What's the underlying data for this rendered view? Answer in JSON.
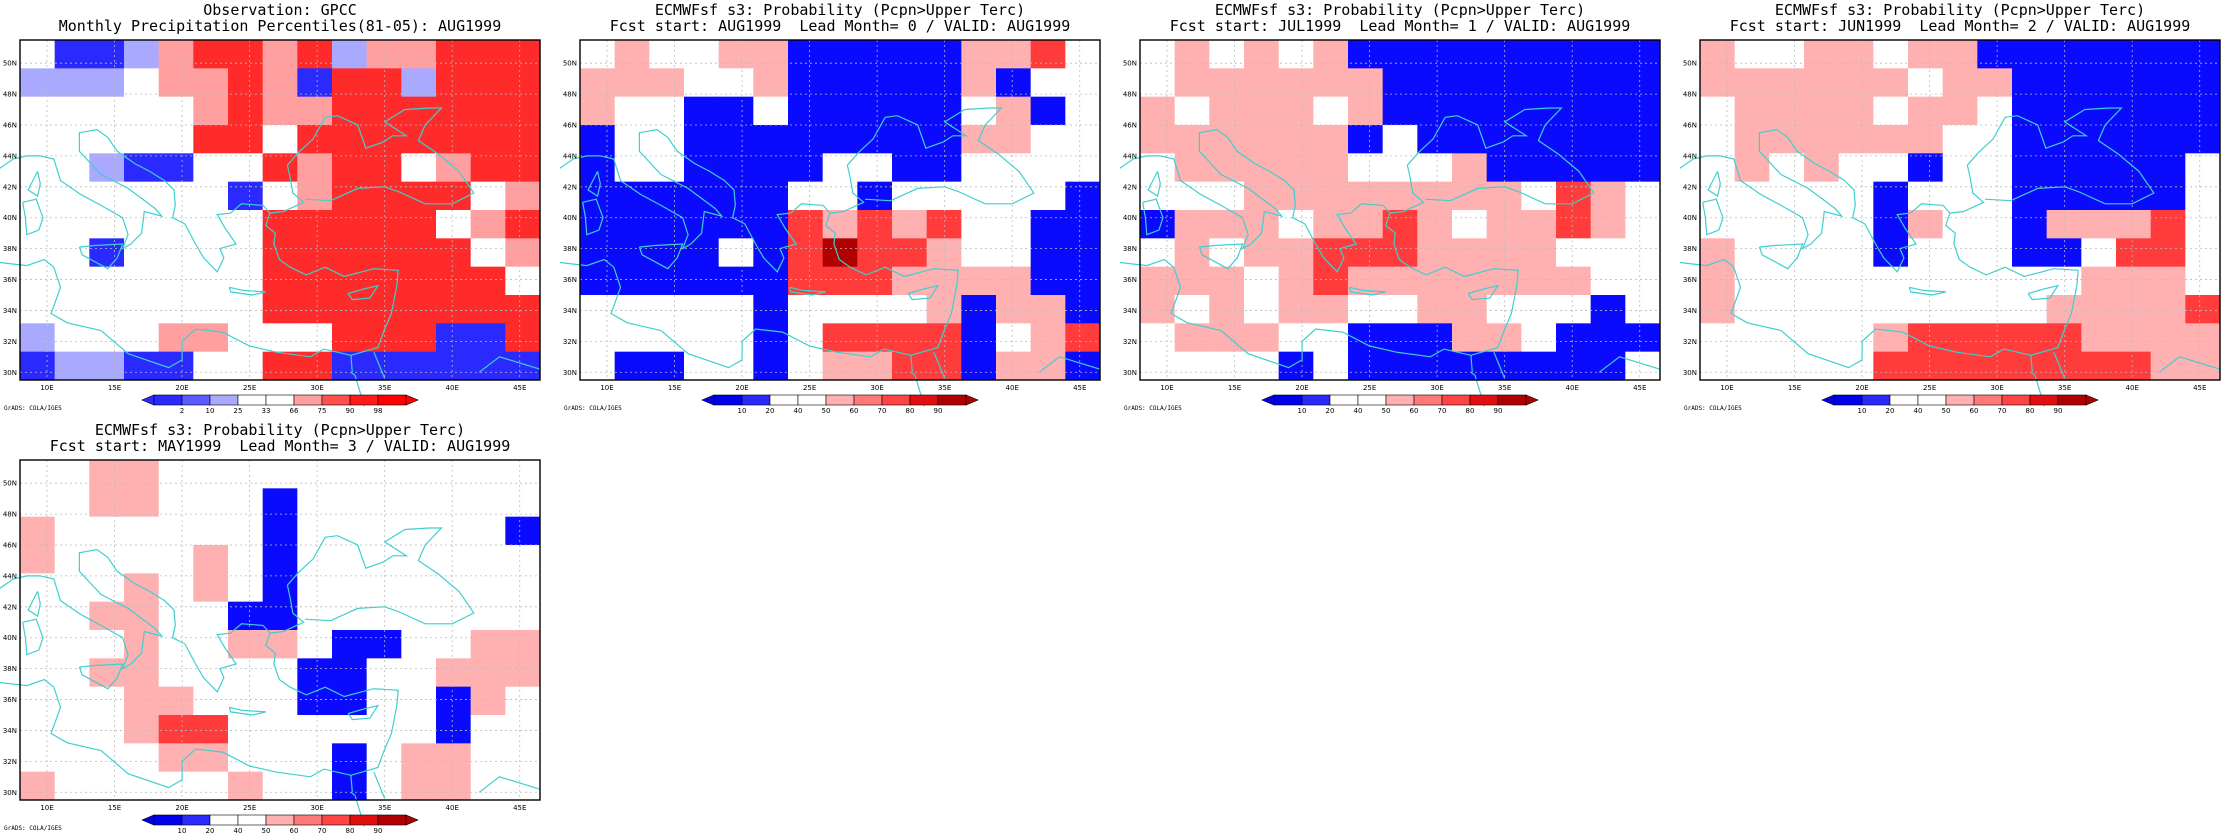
{
  "page": {
    "background": "#ffffff"
  },
  "colors": {
    "obs": {
      "2": "#2a2aff",
      "10": "#5a5aff",
      "25": "#a9a9ff",
      "33": "#ffffff",
      "66": "#ffffff",
      "75": "#ff9f9f",
      "90": "#ff5050",
      "98": "#ff1a1a",
      "above": "#ff0000"
    },
    "prob": {
      "below10": "#0000ee",
      "10": "#2a2aff",
      "20": "#ffffff",
      "40": "#ffffff",
      "50": "#ffb0b0",
      "60": "#ff7a7a",
      "70": "#ff4444",
      "80": "#e01010",
      "90": "#b00000"
    },
    "coast": "#40d0d0",
    "grid": "#bbbbbb"
  },
  "axis": {
    "lon_ticks": [
      10,
      15,
      20,
      25,
      30,
      35,
      40,
      45
    ],
    "lon_labels": [
      "10E",
      "15E",
      "20E",
      "25E",
      "30E",
      "35E",
      "40E",
      "45E"
    ],
    "lat_ticks": [
      30,
      32,
      34,
      36,
      38,
      40,
      42,
      44,
      46,
      48,
      50
    ],
    "lat_labels": [
      "30N",
      "32N",
      "34N",
      "36N",
      "38N",
      "40N",
      "42N",
      "44N",
      "46N",
      "48N",
      "50N"
    ]
  },
  "credit": "GrADS: COLA/IGES",
  "panels": [
    {
      "id": "obs",
      "title1": "Observation: GPCC",
      "title2": "Monthly Precipitation Percentiles(81-05): AUG1999",
      "legend_type": "obs",
      "legend_labels": [
        "2",
        "10",
        "25",
        "33",
        "66",
        "75",
        "90",
        "98"
      ],
      "legend_colors": [
        "#2a2aff",
        "#5a5aff",
        "#a9a9ff",
        "#ffffff",
        "#ffffff",
        "#ff9f9f",
        "#ff5050",
        "#ff1a1a",
        "#ff0000"
      ],
      "grid": [
        "W B B L P R R P R L P P R R R",
        "L L L W P P R P B R R L R R R",
        "W W W W W P R P P R R R R R R",
        "W W W W W R R W R R R R R R R",
        "W W L B B W W R P R R W P R R",
        "W W W W W W B W P R R R R W P",
        "W W W W W W W R R R R R W P R",
        "W W B W W W W R R R R R R W P",
        "W W W W W W W R R R R R R R W",
        "W W W W W W W R R R R R R R R",
        "L W W W P P W W W R R R B B R",
        "B L L B B W W R R B B B B B B"
      ]
    },
    {
      "id": "f0",
      "title1": "ECMWFsf s3: Probability (Pcpn>Upper Terc)",
      "title2": "Fcst start: AUG1999  Lead Month= 0 / VALID: AUG1999",
      "legend_type": "prob",
      "legend_labels": [
        "10",
        "20",
        "40",
        "50",
        "60",
        "70",
        "80",
        "90"
      ],
      "legend_colors": [
        "#0000ee",
        "#2a2aff",
        "#ffffff",
        "#ffffff",
        "#ffb0b0",
        "#ff7a7a",
        "#ff4444",
        "#e01010",
        "#b00000"
      ],
      "grid": [
        "W P W W P P B B B B B P P R W",
        "P P P W W P B B B B B P B W W",
        "P W W B B W B B B B B W P B W",
        "B W W B B B B B B B B P P W W",
        "B W W B B B B W W B B W W W W",
        "B B B B B B W W B W W W W W B",
        "B B B B B B R P R P R W W B B",
        "B B B B W B R X R R P W W B B",
        "B B B B B B R R R P P P P B B",
        "W W W W W B W W W W P B P P B",
        "W W W W W B W R R R R B W P R",
        "W B B W W B W P P R R B P P B"
      ]
    },
    {
      "id": "f1",
      "title1": "ECMWFsf s3: Probability (Pcpn>Upper Terc)",
      "title2": "Fcst start: JUL1999  Lead Month= 1 / VALID: AUG1999",
      "legend_type": "prob",
      "legend_labels": [
        "10",
        "20",
        "40",
        "50",
        "60",
        "70",
        "80",
        "90"
      ],
      "legend_colors": [
        "#0000ee",
        "#2a2aff",
        "#ffffff",
        "#ffffff",
        "#ffb0b0",
        "#ff7a7a",
        "#ff4444",
        "#e01010",
        "#b00000"
      ],
      "grid": [
        "W P W P W P B B B B B B B B B",
        "W P P P P P P B B B B B B B B",
        "P W P P P W P B B B B B B B B",
        "P P P P P P B W B B B B B B B",
        "W P P P P P W W W P B B B B B",
        "W W W P P P P P P P P W R P W",
        "B P P P W P P R P W P P R P W",
        "W P W P P R R R P P P P W W W",
        "P P P W P R P P P P P P P W W",
        "P W P W P P W W P P W W W B W",
        "W P P P W W B B B P P W B B B",
        "W W W W B W B B B B B B B B W"
      ]
    },
    {
      "id": "f2",
      "title1": "ECMWFsf s3: Probability (Pcpn>Upper Terc)",
      "title2": "Fcst start: JUN1999  Lead Month= 2 / VALID: AUG1999",
      "legend_type": "prob",
      "legend_labels": [
        "10",
        "20",
        "40",
        "50",
        "60",
        "70",
        "80",
        "90"
      ],
      "legend_colors": [
        "#0000ee",
        "#2a2aff",
        "#ffffff",
        "#ffffff",
        "#ffb0b0",
        "#ff7a7a",
        "#ff4444",
        "#e01010",
        "#b00000"
      ],
      "grid": [
        "P W W P P W P P B B B B B B B",
        "P P P P P P W P P B B B B B B",
        "W P P P P W P P W B B B B B B",
        "W P P P P P P W W B B B B B B",
        "W P W P W W B W W B B B B B W",
        "W W W W W B W W W B B B B B W",
        "W W W W W B P W W B P P P R W",
        "P W W W W B W W W B B W R R W",
        "P W W W W W W W W W W P P P W",
        "P W W W W W W W W W P P P P R",
        "W W W W W P R R R R R P P P P",
        "W W W W W R R R R R R R R P P"
      ]
    },
    {
      "id": "f3",
      "title1": "ECMWFsf s3: Probability (Pcpn>Upper Terc)",
      "title2": "Fcst start: MAY1999  Lead Month= 3 / VALID: AUG1999",
      "legend_type": "prob",
      "legend_labels": [
        "10",
        "20",
        "40",
        "50",
        "60",
        "70",
        "80",
        "90"
      ],
      "legend_colors": [
        "#0000ee",
        "#2a2aff",
        "#ffffff",
        "#ffffff",
        "#ffb0b0",
        "#ff7a7a",
        "#ff4444",
        "#e01010",
        "#b00000"
      ],
      "grid": [
        "W W P P W W W W W W W W W W W",
        "W W P P W W W B W W W W W W W",
        "P W W W W W W B W W W W W W B",
        "P W W W W P W B W W W W W W W",
        "W W W P W P W B W W W W W W W",
        "W W P P W W B B W W W W W W W",
        "W W W P W W P P W B B W W P P",
        "W W P P W W W W B B W W P P P",
        "W W W P P W W W B B W W B P W",
        "W W W P R R W W W W W W B W W",
        "W W W W P P W W W B W P P W W",
        "P W W W W W P W W B W P P W W"
      ]
    }
  ]
}
